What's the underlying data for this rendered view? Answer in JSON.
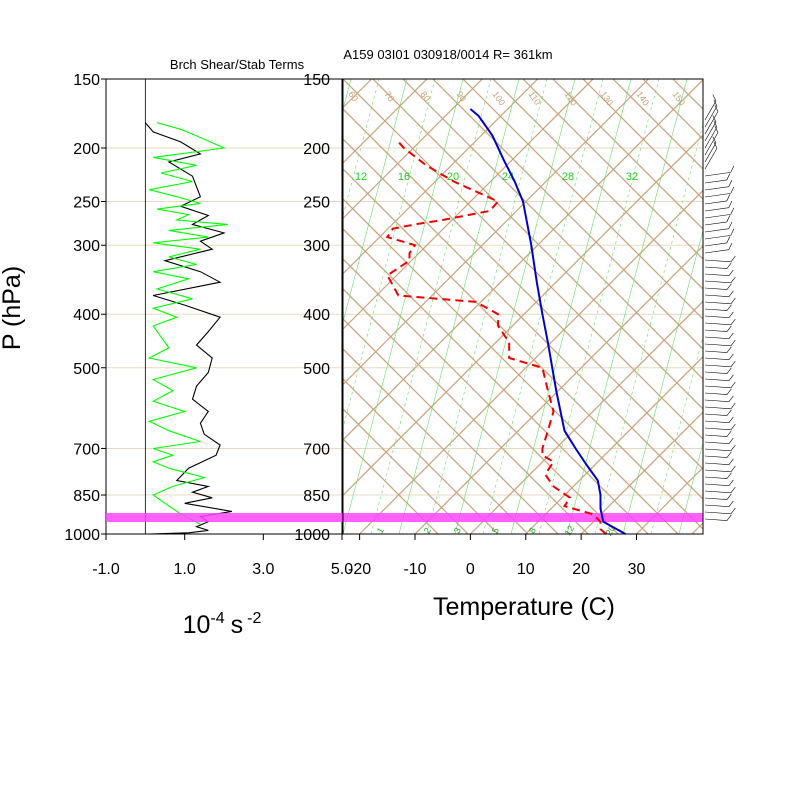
{
  "title": "A159 03I01 030918/0014 R= 361km",
  "chart_data": [
    {
      "type": "line",
      "title": "Brch Shear/Stab Terms",
      "xlabel": "10",
      "xlabel_exp": "-4",
      "xlabel_unit": "s",
      "xlabel_unit_exp": "-2",
      "ylabel": "P (hPa)",
      "xlim": [
        -1.0,
        5.0
      ],
      "ylim": [
        1000,
        150
      ],
      "y_scale": "log",
      "x_ticks": [
        "-1.0",
        "1.0",
        "3.0",
        "5.0"
      ],
      "y_ticks": [
        "150",
        "200",
        "250",
        "300",
        "400",
        "500",
        "700",
        "850",
        "1000"
      ],
      "grid": true,
      "series": [
        {
          "color": "#000000",
          "x": [
            0.0,
            0.2,
            0.9,
            1.4,
            0.6,
            1.2,
            1.3,
            1.4,
            0.9,
            1.6,
            1.2,
            2.0,
            1.4,
            1.7,
            0.5,
            1.4,
            1.9,
            0.2,
            1.0,
            1.9,
            1.6,
            1.3,
            1.7,
            1.6,
            1.3,
            1.2,
            1.6,
            1.4,
            1.5,
            1.9,
            1.8,
            1.1,
            0.8,
            1.6,
            1.2,
            1.7,
            1.0,
            2.2,
            1.4,
            1.6,
            1.3,
            1.6,
            1.1,
            0.1
          ],
          "p": [
            180,
            187,
            195,
            205,
            212,
            225,
            235,
            245,
            255,
            265,
            275,
            285,
            295,
            305,
            320,
            335,
            350,
            370,
            385,
            405,
            430,
            455,
            480,
            510,
            540,
            570,
            600,
            630,
            660,
            690,
            720,
            760,
            800,
            820,
            840,
            860,
            880,
            910,
            930,
            950,
            970,
            985,
            995,
            1000
          ]
        },
        {
          "color": "#00ff00",
          "x": [
            0.3,
            0.9,
            1.3,
            2.0,
            0.2,
            1.3,
            0.4,
            1.2,
            0.1,
            0.8,
            1.4,
            0.3,
            1.1,
            0.8,
            2.1,
            0.6,
            1.6,
            0.2,
            1.4,
            0.6,
            1.3,
            0.2,
            1.1,
            0.3,
            1.2,
            0.2,
            0.8,
            0.2,
            0.4,
            0.6,
            0.1,
            1.3,
            0.2,
            0.7,
            0.2,
            1.0,
            0.1,
            0.6,
            1.4,
            0.2,
            0.7,
            0.2,
            0.6,
            1.5,
            0.7,
            0.2,
            0.5,
            0.9,
            1.4
          ],
          "p": [
            180,
            185,
            190,
            200,
            208,
            215,
            222,
            230,
            238,
            245,
            252,
            258,
            264,
            270,
            275,
            282,
            290,
            297,
            305,
            315,
            325,
            335,
            345,
            360,
            375,
            390,
            405,
            420,
            440,
            460,
            480,
            500,
            525,
            550,
            575,
            600,
            625,
            650,
            680,
            700,
            720,
            740,
            760,
            790,
            820,
            850,
            880,
            920,
            960
          ]
        }
      ]
    },
    {
      "type": "line",
      "title": "",
      "xlabel": "Temperature (C)",
      "ylabel": "",
      "xlim": [
        -23,
        42
      ],
      "ylim": [
        1000,
        150
      ],
      "y_scale": "log",
      "x_ticks": [
        "-20",
        "-10",
        "0",
        "10",
        "20",
        "30"
      ],
      "y_ticks": [
        "150",
        "200",
        "250",
        "300",
        "400",
        "500",
        "700",
        "850",
        "1000"
      ],
      "isotherm_labels": [
        "60",
        "70",
        "80",
        "90",
        "100",
        "110",
        "120",
        "130",
        "140",
        "150"
      ],
      "mixing_ratio_labels": [
        "12",
        "16",
        "20",
        "24",
        "28",
        "32"
      ],
      "bottom_labels": [
        "1",
        "2",
        "3",
        "5",
        "8",
        "12",
        "20"
      ],
      "highlight_band_hpa": [
        940,
        1000
      ],
      "highlight_color": "#ff44ff",
      "grid": true,
      "series": [
        {
          "color": "#0000cc",
          "style": "solid",
          "temp": [
            28,
            24,
            23.5,
            23.5,
            23,
            21,
            19,
            17,
            15.5,
            14,
            13,
            12,
            11,
            9.5,
            8,
            6,
            4,
            1.5,
            0
          ],
          "p": [
            1000,
            950,
            900,
            850,
            800,
            750,
            700,
            650,
            550,
            450,
            400,
            350,
            300,
            250,
            230,
            210,
            190,
            175,
            170
          ]
        },
        {
          "color": "#ee0000",
          "style": "dashed",
          "temp": [
            24.5,
            23.5,
            23.5,
            22,
            17,
            18,
            15,
            13.5,
            15,
            13,
            13,
            14,
            15,
            14,
            13,
            7,
            7,
            5,
            5,
            1,
            -13,
            -15,
            -11,
            -11,
            -10,
            -15,
            -14,
            -10,
            -5,
            3.5,
            5,
            -3,
            -8,
            -12,
            -13
          ],
          "p": [
            1000,
            980,
            950,
            920,
            890,
            860,
            820,
            780,
            740,
            720,
            700,
            650,
            600,
            550,
            500,
            480,
            450,
            420,
            400,
            380,
            370,
            340,
            320,
            310,
            300,
            290,
            280,
            275,
            270,
            260,
            250,
            230,
            215,
            200,
            195
          ]
        }
      ],
      "wind_barbs": "right-edge"
    }
  ]
}
